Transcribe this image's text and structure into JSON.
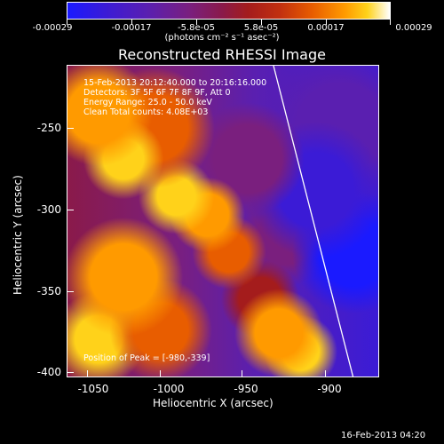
{
  "colorbar": {
    "tick_labels": [
      "-0.00029",
      "-0.00017",
      "-5.8e-05",
      "5.8e-05",
      "0.00017",
      "0.00029"
    ],
    "unit_label": "(photons cm⁻² s⁻¹ asec⁻²)"
  },
  "title": "Reconstructed RHESSI Image",
  "info": {
    "time": "15-Feb-2013 20:12:40.000 to 20:16:16.000",
    "detectors": "Detectors: 3F 5F 6F 7F 8F 9F, Att 0",
    "energy": "Energy Range: 25.0 - 50.0 keV",
    "clean": "Clean     Total counts: 4.08E+03",
    "peak": "Position of Peak = [-980,-339]"
  },
  "axes": {
    "ylabel": "Heliocentric Y (arcsec)",
    "xlabel": "Heliocentric X (arcsec)",
    "yticks": [
      "-250",
      "-300",
      "-350",
      "-400"
    ],
    "xticks": [
      "-1050",
      "-1000",
      "-950",
      "-900"
    ]
  },
  "footer": "16-Feb-2013 04:20"
}
